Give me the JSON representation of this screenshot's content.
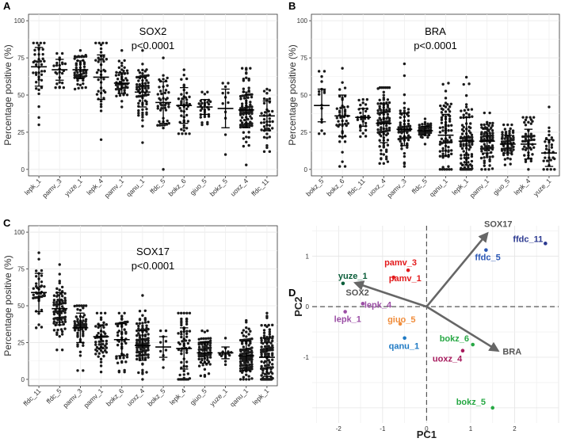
{
  "chart_data": [
    {
      "type": "scatter",
      "subtype": "dot-plot",
      "panel": "A",
      "title": "SOX2",
      "subtitle": "p<0.0001",
      "ylabel": "Percentage positive (%)",
      "xlabel": "",
      "ylim": [
        0,
        100
      ],
      "yticks": [
        0,
        25,
        50,
        75,
        100
      ],
      "grid": true,
      "categories": [
        "lepk_1",
        "pamv_3",
        "yuze_1",
        "lepk_4",
        "pamv_1",
        "qanu_1",
        "ffdc_5",
        "bokz_6",
        "giuo_5",
        "bokz_5",
        "uoxz_4",
        "ffdc_11"
      ],
      "means": [
        69,
        67,
        67,
        62,
        58,
        52,
        45,
        43,
        42,
        41,
        40,
        36
      ],
      "sd": [
        13,
        7,
        6,
        15,
        7,
        10,
        14,
        12,
        5,
        13,
        12,
        10
      ],
      "ranges": [
        [
          30,
          85
        ],
        [
          55,
          78
        ],
        [
          54,
          80
        ],
        [
          20,
          85
        ],
        [
          42,
          80
        ],
        [
          18,
          80
        ],
        [
          0,
          75
        ],
        [
          24,
          67
        ],
        [
          30,
          52
        ],
        [
          10,
          58
        ],
        [
          3,
          68
        ],
        [
          12,
          54
        ]
      ],
      "counts": [
        40,
        25,
        55,
        40,
        50,
        70,
        45,
        45,
        30,
        12,
        90,
        40
      ]
    },
    {
      "type": "scatter",
      "subtype": "dot-plot",
      "panel": "B",
      "title": "BRA",
      "subtitle": "p<0.0001",
      "ylabel": "Percentage positive (%)",
      "xlabel": "",
      "ylim": [
        0,
        100
      ],
      "yticks": [
        0,
        25,
        50,
        75,
        100
      ],
      "grid": true,
      "categories": [
        "bokz_5",
        "bokz_6",
        "ffdc_11",
        "uoxz_4",
        "pamv_3",
        "ffdc_5",
        "qanu_1",
        "lepk_1",
        "pamv_1",
        "giuo_5",
        "lepk_4",
        "yuze_1"
      ],
      "means": [
        43,
        36,
        35,
        31,
        27,
        26,
        23,
        19,
        19,
        17,
        17,
        11
      ],
      "sd": [
        11,
        14,
        6,
        13,
        11,
        3,
        14,
        16,
        8,
        6,
        10,
        9
      ],
      "ranges": [
        [
          24,
          66
        ],
        [
          2,
          68
        ],
        [
          22,
          47
        ],
        [
          4,
          55
        ],
        [
          2,
          71
        ],
        [
          17,
          34
        ],
        [
          0,
          58
        ],
        [
          0,
          62
        ],
        [
          0,
          38
        ],
        [
          3,
          30
        ],
        [
          0,
          35
        ],
        [
          0,
          42
        ]
      ],
      "counts": [
        16,
        45,
        30,
        100,
        70,
        50,
        80,
        100,
        80,
        60,
        50,
        30
      ]
    },
    {
      "type": "scatter",
      "subtype": "dot-plot",
      "panel": "C",
      "title": "SOX17",
      "subtitle": "p<0.0001",
      "ylabel": "Percentage positive (%)",
      "xlabel": "",
      "ylim": [
        0,
        100
      ],
      "yticks": [
        0,
        25,
        50,
        75,
        100
      ],
      "grid": true,
      "categories": [
        "ffdc_11",
        "ffdc_5",
        "pamv_3",
        "pamv_1",
        "bokz_6",
        "uoxz_4",
        "bokz_5",
        "lepk_4",
        "giuo_5",
        "yuze_1",
        "qanu_1",
        "lepk_1"
      ],
      "means": [
        59,
        48,
        35,
        29,
        27,
        23,
        22,
        21,
        18,
        18,
        16,
        15
      ],
      "sd": [
        13,
        11,
        10,
        8,
        11,
        10,
        7,
        14,
        7,
        4,
        10,
        13
      ],
      "ranges": [
        [
          35,
          86
        ],
        [
          20,
          78
        ],
        [
          6,
          50
        ],
        [
          5,
          45
        ],
        [
          5,
          45
        ],
        [
          0,
          57
        ],
        [
          8,
          33
        ],
        [
          0,
          45
        ],
        [
          2,
          33
        ],
        [
          10,
          28
        ],
        [
          0,
          40
        ],
        [
          0,
          45
        ]
      ],
      "counts": [
        40,
        80,
        60,
        55,
        55,
        100,
        10,
        60,
        70,
        15,
        100,
        110
      ]
    },
    {
      "type": "scatter",
      "subtype": "pca-biplot",
      "panel": "D",
      "xlabel": "PC1",
      "ylabel": "PC2",
      "xlim": [
        -2.6,
        3.0
      ],
      "ylim": [
        -2.3,
        1.6
      ],
      "xticks": [
        -2,
        -1,
        0,
        1,
        2
      ],
      "yticks": [
        -1,
        0,
        1
      ],
      "grid": true,
      "points": [
        {
          "label": "ffdc_11",
          "x": 2.7,
          "y": 1.25,
          "color": "#2b3990"
        },
        {
          "label": "ffdc_5",
          "x": 1.35,
          "y": 1.12,
          "color": "#2b57b5"
        },
        {
          "label": "pamv_3",
          "x": -0.42,
          "y": 0.72,
          "color": "#e31a1c"
        },
        {
          "label": "pamv_1",
          "x": -0.75,
          "y": 0.58,
          "color": "#e31a1c"
        },
        {
          "label": "yuze_1",
          "x": -1.9,
          "y": 0.46,
          "color": "#0b5e3a"
        },
        {
          "label": "lepk_4",
          "x": -1.45,
          "y": 0.06,
          "color": "#9b4ea5"
        },
        {
          "label": "lepk_1",
          "x": -1.85,
          "y": -0.1,
          "color": "#9b4ea5"
        },
        {
          "label": "giuo_5",
          "x": -0.6,
          "y": -0.34,
          "color": "#f08c3a"
        },
        {
          "label": "qanu_1",
          "x": -0.5,
          "y": -0.62,
          "color": "#1f7ac4"
        },
        {
          "label": "bokz_6",
          "x": 1.05,
          "y": -0.75,
          "color": "#27a844"
        },
        {
          "label": "uoxz_4",
          "x": 0.82,
          "y": -0.87,
          "color": "#a6195c"
        },
        {
          "label": "bokz_5",
          "x": 1.5,
          "y": -2.0,
          "color": "#27a844"
        }
      ],
      "loadings": [
        {
          "label": "SOX17",
          "x": 1.38,
          "y": 1.45
        },
        {
          "label": "SOX2",
          "x": -1.62,
          "y": 0.47
        },
        {
          "label": "BRA",
          "x": 1.62,
          "y": -0.87
        }
      ],
      "loading_color": "#666666"
    }
  ]
}
